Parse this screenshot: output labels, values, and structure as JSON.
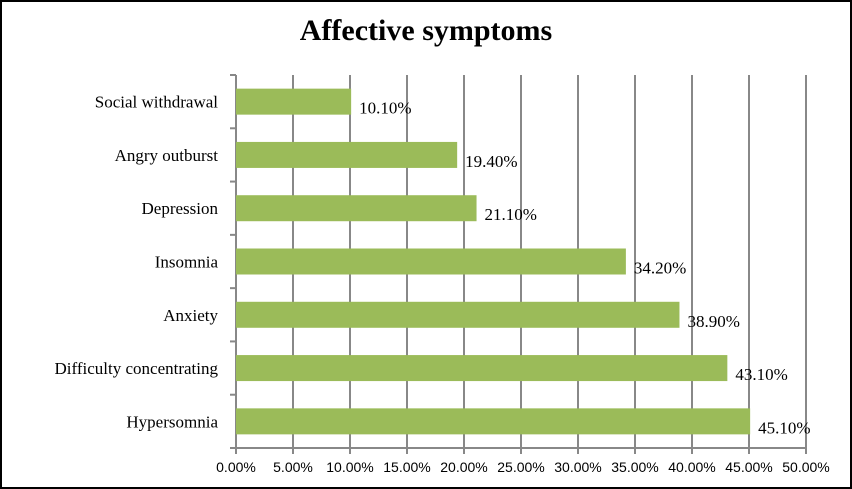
{
  "chart_data": {
    "type": "bar",
    "orientation": "horizontal",
    "title": "Affective symptoms",
    "categories": [
      "Social withdrawal",
      "Angry outburst",
      "Depression",
      "Insomnia",
      "Anxiety",
      "Difficulty concentrating",
      "Hypersomnia"
    ],
    "values": [
      10.1,
      19.4,
      21.1,
      34.2,
      38.9,
      43.1,
      45.1
    ],
    "data_labels": [
      "10.10%",
      "19.40%",
      "21.10%",
      "34.20%",
      "38.90%",
      "43.10%",
      "45.10%"
    ],
    "xlim": [
      0,
      50
    ],
    "x_ticks": [
      0,
      5,
      10,
      15,
      20,
      25,
      30,
      35,
      40,
      45,
      50
    ],
    "x_tick_labels": [
      "0.00%",
      "5.00%",
      "10.00%",
      "15.00%",
      "20.00%",
      "25.00%",
      "30.00%",
      "35.00%",
      "40.00%",
      "45.00%",
      "50.00%"
    ],
    "xlabel": "",
    "ylabel": "",
    "grid": "vertical",
    "legend": "none",
    "bar_color": "#9bbb59"
  }
}
